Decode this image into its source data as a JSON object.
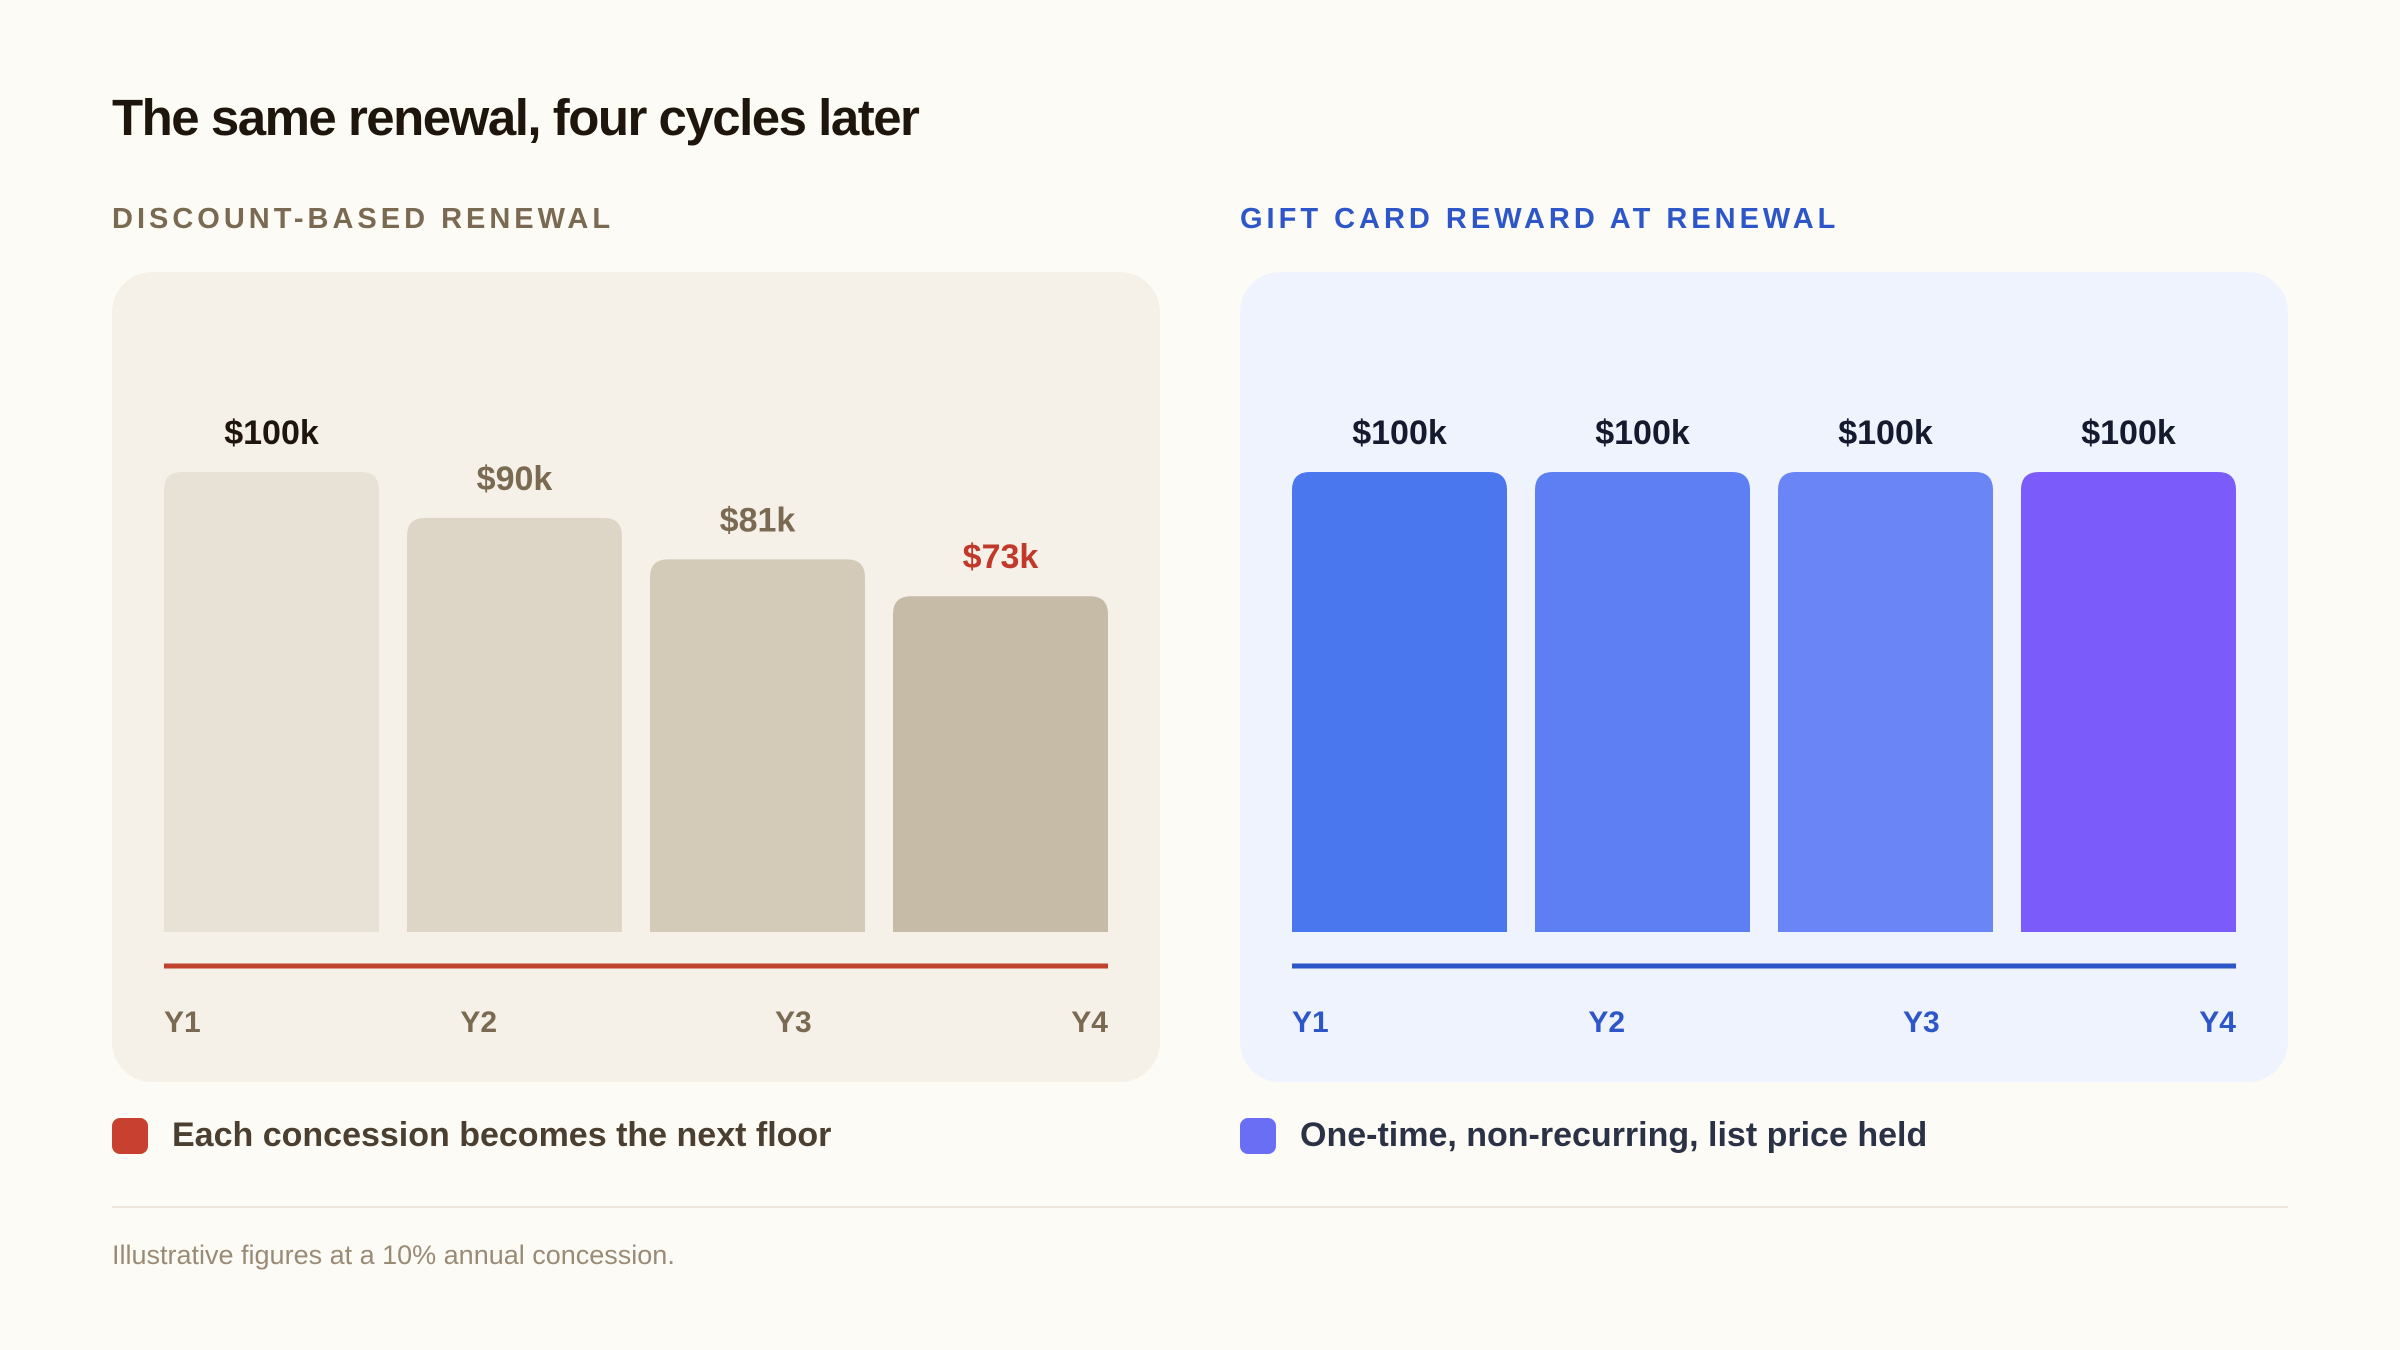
{
  "title": "The same renewal, four cycles later",
  "footnote": "Illustrative figures at a 10% annual concession.",
  "chart_data": [
    {
      "type": "bar",
      "title": "DISCOUNT-BASED RENEWAL",
      "categories": [
        "Y1",
        "Y2",
        "Y3",
        "Y4"
      ],
      "values": [
        100,
        90,
        81,
        73
      ],
      "value_labels": [
        "$100k",
        "$90k",
        "$81k",
        "$73k"
      ],
      "unit": "$k",
      "ylim": [
        0,
        100
      ],
      "legend": "Each concession becomes the next floor",
      "colors": {
        "heading": "#7b6a52",
        "panel_bg": "#f5f1e8",
        "bars": [
          "#e7e1d6",
          "#ddd5c6",
          "#d3cab8",
          "#c6bba6"
        ],
        "value_labels": [
          "#1e160d",
          "#7b6a52",
          "#7b6a52",
          "#c0392b"
        ],
        "baseline": "#c0432f",
        "ticks": "#7b6a52",
        "swatch": "#c8402f",
        "legend_text": "#4a3f30"
      }
    },
    {
      "type": "bar",
      "title": "GIFT CARD REWARD AT RENEWAL",
      "categories": [
        "Y1",
        "Y2",
        "Y3",
        "Y4"
      ],
      "values": [
        100,
        100,
        100,
        100
      ],
      "value_labels": [
        "$100k",
        "$100k",
        "$100k",
        "$100k"
      ],
      "unit": "$k",
      "ylim": [
        0,
        100
      ],
      "legend": "One-time, non-recurring, list price held",
      "colors": {
        "heading": "#2d56c9",
        "panel_bg": "#eef3fd",
        "bars": [
          "#4a76ee",
          "#5e7ff3",
          "#6a85f6",
          "#7b5cfa"
        ],
        "value_labels": [
          "#151a2e",
          "#151a2e",
          "#151a2e",
          "#151a2e"
        ],
        "baseline": "#2d56c9",
        "ticks": "#2d56c9",
        "swatch": "#6a6ef5",
        "legend_text": "#2b3245"
      }
    }
  ]
}
